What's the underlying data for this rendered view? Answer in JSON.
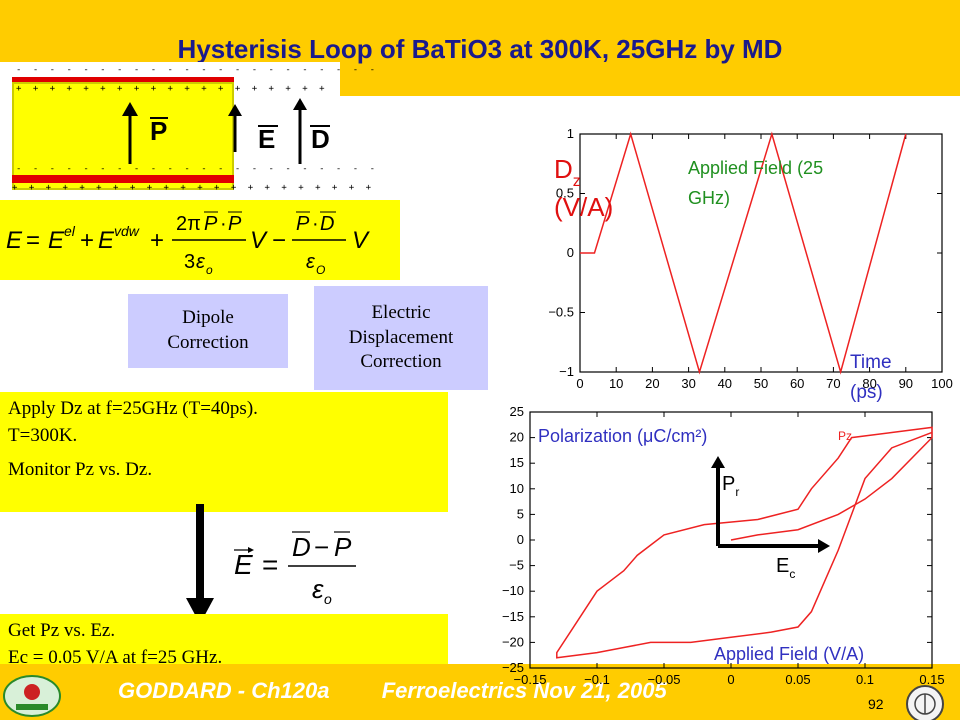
{
  "title": "Hysterisis Loop of BaTiO3 at 300K, 25GHz by MD",
  "footer": {
    "course": "GODDARD - Ch120a",
    "topic": "Ferroelectrics Nov 21, 2005",
    "page": "92"
  },
  "capacitor": {
    "top_charges": "+ + + + + + + + + + + + + + + + + + +",
    "top_neg": "- - - - - - - - - - - - - - - - - - - - - -",
    "bot_neg": "- - - - - - - - - - - - - - - - - - - - - -",
    "bot_charges": "+ + + + + + + + + + + + + + + + + + + + + +",
    "p_label": "P",
    "e_label": "E",
    "d_label": "D"
  },
  "equations": {
    "energy": "E = E^el + E^vdw + (2πP·P / 3ε_o) V − (P·D / ε_O) V",
    "field": "E = (D − P) / ε_o"
  },
  "boxes": {
    "dipole": [
      "Dipole",
      "Correction"
    ],
    "electric": [
      "Electric",
      "Displacement",
      "Correction"
    ]
  },
  "notes": {
    "box1": [
      "Apply Dz at f=25GHz (T=40ps).",
      "T=300K.",
      "Monitor Pz vs. Dz."
    ],
    "box2": [
      "Get Pz vs. Ez.",
      "Ec = 0.05 V/A at f=25 GHz."
    ]
  },
  "chart_data": [
    {
      "type": "line",
      "ylabel_main": "D",
      "ylabel_sub": "z",
      "ylabel_unit": "(V/A)",
      "series_label": [
        "Applied Field (25",
        "GHz)"
      ],
      "xlabel": [
        "Time",
        "(ps)"
      ],
      "xlim": [
        0,
        100
      ],
      "ylim": [
        -1,
        1
      ],
      "xticks": [
        "0",
        "10",
        "20",
        "30",
        "40",
        "50",
        "60",
        "70",
        "80",
        "90",
        "100"
      ],
      "yticks": [
        "1",
        "0.5",
        "0",
        "−0.5",
        "−1"
      ],
      "color": "#ee2222",
      "x": [
        0,
        4,
        14,
        33,
        53,
        72,
        90
      ],
      "y": [
        0,
        0,
        1,
        -1,
        1,
        -1,
        1
      ]
    },
    {
      "type": "line",
      "ylabel": "Polarization (μC/cm²)",
      "series_name": "Pz",
      "xlabel": "Applied Field (V/A)",
      "xlim": [
        -0.15,
        0.15
      ],
      "ylim": [
        -25,
        25
      ],
      "xticks": [
        "−0.15",
        "−0.1",
        "−0.05",
        "0",
        "0.05",
        "0.1",
        "0.15"
      ],
      "yticks": [
        "25",
        "20",
        "15",
        "10",
        "5",
        "0",
        "−5",
        "−10",
        "−15",
        "−20",
        "−25"
      ],
      "pr_label": "P",
      "pr_sub": "r",
      "ec_label": "E",
      "ec_sub": "c",
      "color": "#ee2222",
      "x": [
        0.0,
        0.02,
        0.05,
        0.08,
        0.1,
        0.12,
        0.15,
        0.15,
        0.12,
        0.09,
        0.08,
        0.06,
        0.05,
        0.02,
        -0.02,
        -0.05,
        -0.06,
        -0.07,
        -0.08,
        -0.09,
        -0.1,
        -0.11,
        -0.12,
        -0.13,
        -0.13,
        -0.1,
        -0.08,
        -0.06,
        -0.03,
        0.0,
        0.03,
        0.05,
        0.06,
        0.07,
        0.08,
        0.09,
        0.1,
        0.12,
        0.15
      ],
      "y": [
        0,
        1,
        2,
        5,
        8,
        12,
        20,
        22,
        21,
        20,
        16,
        10,
        6,
        4,
        3,
        1,
        -1,
        -3,
        -6,
        -8,
        -10,
        -14,
        -18,
        -22,
        -23,
        -22,
        -21,
        -20,
        -20,
        -19,
        -18,
        -17,
        -14,
        -8,
        -2,
        5,
        12,
        18,
        21
      ]
    }
  ]
}
